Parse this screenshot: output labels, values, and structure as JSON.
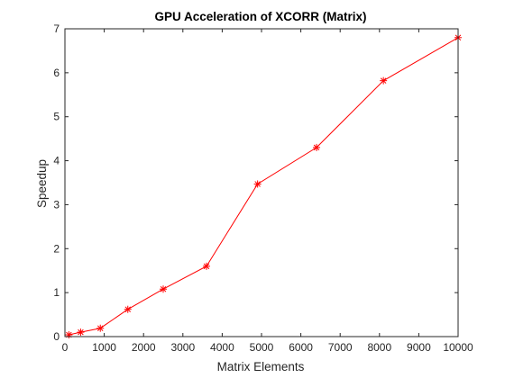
{
  "chart_data": {
    "type": "line",
    "title": "GPU Acceleration of XCORR (Matrix)",
    "xlabel": "Matrix Elements",
    "ylabel": "Speedup",
    "xlim": [
      0,
      10000
    ],
    "ylim": [
      0,
      7
    ],
    "xticks": [
      0,
      1000,
      2000,
      3000,
      4000,
      5000,
      6000,
      7000,
      8000,
      9000,
      10000
    ],
    "yticks": [
      0,
      1,
      2,
      3,
      4,
      5,
      6,
      7
    ],
    "grid": false,
    "legend": "none",
    "marker": "asterisk",
    "color": "#ff0000",
    "series": [
      {
        "x": [
          100,
          400,
          900,
          1600,
          2500,
          3600,
          4900,
          6400,
          8100,
          10000
        ],
        "y": [
          0.04,
          0.1,
          0.19,
          0.62,
          1.08,
          1.6,
          3.47,
          4.3,
          5.82,
          6.8
        ]
      }
    ]
  }
}
